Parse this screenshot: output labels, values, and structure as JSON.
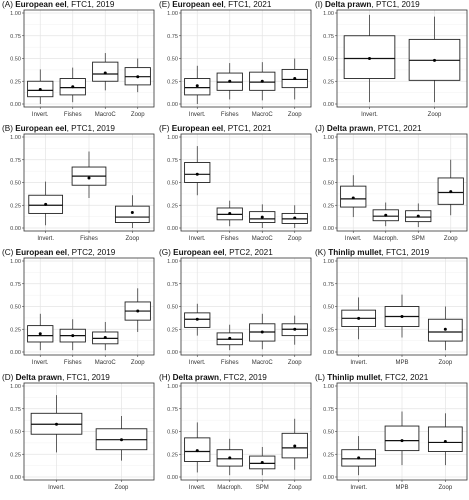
{
  "chart_data": [
    {
      "type": "box",
      "title": {
        "letter": "(A) ",
        "species": "European eel",
        "rest": ", FTC1, 2019"
      },
      "ylim": [
        0,
        1
      ],
      "yticks": [
        "0.00",
        "0.25",
        "0.50",
        "0.75",
        "1.00"
      ],
      "categories": [
        "Invert.",
        "Fishes",
        "MacroC",
        "Zoop"
      ],
      "boxes": [
        {
          "min": 0,
          "q1": 0.08,
          "median": 0.15,
          "q3": 0.25,
          "max": 0.38,
          "mean": 0.16
        },
        {
          "min": 0.02,
          "q1": 0.1,
          "median": 0.18,
          "q3": 0.28,
          "max": 0.4,
          "mean": 0.19
        },
        {
          "min": 0.15,
          "q1": 0.25,
          "median": 0.33,
          "q3": 0.46,
          "max": 0.56,
          "mean": 0.34
        },
        {
          "min": 0.13,
          "q1": 0.21,
          "median": 0.3,
          "q3": 0.4,
          "max": 0.5,
          "mean": 0.3
        }
      ]
    },
    {
      "type": "box",
      "title": {
        "letter": "(E) ",
        "species": "European eel",
        "rest": ", FTC1, 2021"
      },
      "ylim": [
        0,
        1
      ],
      "yticks": [
        "0.00",
        "0.25",
        "0.50",
        "0.75",
        "1.00"
      ],
      "categories": [
        "Invert.",
        "Fishes",
        "MacroC",
        "Zoop"
      ],
      "boxes": [
        {
          "min": 0,
          "q1": 0.1,
          "median": 0.18,
          "q3": 0.28,
          "max": 0.42,
          "mean": 0.2
        },
        {
          "min": 0.05,
          "q1": 0.15,
          "median": 0.24,
          "q3": 0.34,
          "max": 0.45,
          "mean": 0.25
        },
        {
          "min": 0.04,
          "q1": 0.15,
          "median": 0.24,
          "q3": 0.35,
          "max": 0.46,
          "mean": 0.25
        },
        {
          "min": 0.05,
          "q1": 0.18,
          "median": 0.27,
          "q3": 0.38,
          "max": 0.5,
          "mean": 0.28
        }
      ]
    },
    {
      "type": "box",
      "title": {
        "letter": "(I) ",
        "species": "Delta prawn",
        "rest": ", PTC1, 2019"
      },
      "ylim": [
        0,
        1
      ],
      "yticks": [
        "0.00",
        "0.25",
        "0.50",
        "0.75",
        "1.00"
      ],
      "categories": [
        "Invert.",
        "Zoop"
      ],
      "boxes": [
        {
          "min": 0.02,
          "q1": 0.28,
          "median": 0.5,
          "q3": 0.75,
          "max": 0.98,
          "mean": 0.5
        },
        {
          "min": 0.02,
          "q1": 0.26,
          "median": 0.48,
          "q3": 0.71,
          "max": 0.96,
          "mean": 0.48
        }
      ]
    },
    {
      "type": "box",
      "title": {
        "letter": "(B) ",
        "species": "European eel",
        "rest": ", PTC1, 2019"
      },
      "ylim": [
        0,
        1
      ],
      "yticks": [
        "0.00",
        "0.25",
        "0.50",
        "0.75",
        "1.00"
      ],
      "categories": [
        "Invert.",
        "Fishes",
        "Zoop"
      ],
      "boxes": [
        {
          "min": 0.03,
          "q1": 0.16,
          "median": 0.25,
          "q3": 0.36,
          "max": 0.51,
          "mean": 0.26
        },
        {
          "min": 0.33,
          "q1": 0.47,
          "median": 0.57,
          "q3": 0.67,
          "max": 0.84,
          "mean": 0.55
        },
        {
          "min": 0,
          "q1": 0.06,
          "median": 0.12,
          "q3": 0.24,
          "max": 0.36,
          "mean": 0.17
        }
      ]
    },
    {
      "type": "box",
      "title": {
        "letter": "(F) ",
        "species": "European eel",
        "rest": ", PTC1, 2021"
      },
      "ylim": [
        0,
        1
      ],
      "yticks": [
        "0.00",
        "0.25",
        "0.50",
        "0.75",
        "1.00"
      ],
      "categories": [
        "Invert.",
        "Fishes",
        "MacroC",
        "Zoop"
      ],
      "boxes": [
        {
          "min": 0.36,
          "q1": 0.5,
          "median": 0.59,
          "q3": 0.72,
          "max": 0.9,
          "mean": 0.59
        },
        {
          "min": 0.02,
          "q1": 0.09,
          "median": 0.15,
          "q3": 0.22,
          "max": 0.3,
          "mean": 0.16
        },
        {
          "min": 0,
          "q1": 0.06,
          "median": 0.1,
          "q3": 0.18,
          "max": 0.26,
          "mean": 0.12
        },
        {
          "min": 0,
          "q1": 0.05,
          "median": 0.1,
          "q3": 0.16,
          "max": 0.25,
          "mean": 0.11
        }
      ]
    },
    {
      "type": "box",
      "title": {
        "letter": "(J) ",
        "species": "Delta prawn",
        "rest": ", PTC1, 2021"
      },
      "ylim": [
        0,
        1
      ],
      "yticks": [
        "0.00",
        "0.25",
        "0.50",
        "0.75",
        "1.00"
      ],
      "categories": [
        "Invert.",
        "Macroph.",
        "SPM",
        "Zoop"
      ],
      "boxes": [
        {
          "min": 0.12,
          "q1": 0.23,
          "median": 0.32,
          "q3": 0.46,
          "max": 0.58,
          "mean": 0.33
        },
        {
          "min": 0.02,
          "q1": 0.08,
          "median": 0.13,
          "q3": 0.2,
          "max": 0.28,
          "mean": 0.14
        },
        {
          "min": 0.01,
          "q1": 0.07,
          "median": 0.12,
          "q3": 0.19,
          "max": 0.27,
          "mean": 0.13
        },
        {
          "min": 0.14,
          "q1": 0.26,
          "median": 0.39,
          "q3": 0.55,
          "max": 0.75,
          "mean": 0.4
        }
      ]
    },
    {
      "type": "box",
      "title": {
        "letter": "(C) ",
        "species": "European eel",
        "rest": ", PTC2, 2019"
      },
      "ylim": [
        0,
        1
      ],
      "yticks": [
        "0.00",
        "0.25",
        "0.50",
        "0.75",
        "1.00"
      ],
      "categories": [
        "Invert.",
        "Fishes",
        "MacroC",
        "Zoop"
      ],
      "boxes": [
        {
          "min": 0.02,
          "q1": 0.11,
          "median": 0.18,
          "q3": 0.29,
          "max": 0.42,
          "mean": 0.2
        },
        {
          "min": 0.02,
          "q1": 0.11,
          "median": 0.18,
          "q3": 0.25,
          "max": 0.36,
          "mean": 0.18
        },
        {
          "min": 0.02,
          "q1": 0.09,
          "median": 0.15,
          "q3": 0.22,
          "max": 0.33,
          "mean": 0.16
        },
        {
          "min": 0.22,
          "q1": 0.35,
          "median": 0.45,
          "q3": 0.55,
          "max": 0.7,
          "mean": 0.45
        }
      ]
    },
    {
      "type": "box",
      "title": {
        "letter": "(G) ",
        "species": "European eel",
        "rest": ", PTC2, 2021"
      },
      "ylim": [
        0,
        1
      ],
      "yticks": [
        "0.00",
        "0.25",
        "0.50",
        "0.75",
        "1.00"
      ],
      "categories": [
        "Invert.",
        "Fishes",
        "MacroC",
        "Zoop"
      ],
      "boxes": [
        {
          "min": 0.18,
          "q1": 0.27,
          "median": 0.36,
          "q3": 0.43,
          "max": 0.53,
          "mean": 0.36
        },
        {
          "min": 0.02,
          "q1": 0.08,
          "median": 0.14,
          "q3": 0.21,
          "max": 0.3,
          "mean": 0.15
        },
        {
          "min": 0.03,
          "q1": 0.12,
          "median": 0.22,
          "q3": 0.31,
          "max": 0.42,
          "mean": 0.22
        },
        {
          "min": 0.08,
          "q1": 0.18,
          "median": 0.25,
          "q3": 0.31,
          "max": 0.4,
          "mean": 0.25
        }
      ]
    },
    {
      "type": "box",
      "title": {
        "letter": "(K) ",
        "species": "Thinlip mullet",
        "rest": ", FTC1, 2019"
      },
      "ylim": [
        0,
        1
      ],
      "yticks": [
        "0.00",
        "0.25",
        "0.50",
        "0.75",
        "1.00"
      ],
      "categories": [
        "Invert.",
        "MPB",
        "Zoop"
      ],
      "boxes": [
        {
          "min": 0.14,
          "q1": 0.28,
          "median": 0.37,
          "q3": 0.46,
          "max": 0.6,
          "mean": 0.37
        },
        {
          "min": 0.16,
          "q1": 0.28,
          "median": 0.39,
          "q3": 0.5,
          "max": 0.63,
          "mean": 0.39
        },
        {
          "min": 0.02,
          "q1": 0.12,
          "median": 0.22,
          "q3": 0.36,
          "max": 0.5,
          "mean": 0.25
        }
      ]
    },
    {
      "type": "box",
      "title": {
        "letter": "(D) ",
        "species": "Delta prawn",
        "rest": ", FTC1, 2019"
      },
      "ylim": [
        0,
        1
      ],
      "yticks": [
        "0.00",
        "0.25",
        "0.50",
        "0.75",
        "1.00"
      ],
      "categories": [
        "Invert.",
        "Zoop"
      ],
      "boxes": [
        {
          "min": 0.27,
          "q1": 0.47,
          "median": 0.58,
          "q3": 0.7,
          "max": 0.9,
          "mean": 0.58
        },
        {
          "min": 0.18,
          "q1": 0.3,
          "median": 0.41,
          "q3": 0.53,
          "max": 0.67,
          "mean": 0.41
        }
      ]
    },
    {
      "type": "box",
      "title": {
        "letter": "(H) ",
        "species": "Delta prawn",
        "rest": ", FTC2, 2019"
      },
      "ylim": [
        0,
        1
      ],
      "yticks": [
        "0.00",
        "0.25",
        "0.50",
        "0.75",
        "1.00"
      ],
      "categories": [
        "Invert.",
        "Macroph.",
        "SPM",
        "Zoop"
      ],
      "boxes": [
        {
          "min": 0.05,
          "q1": 0.17,
          "median": 0.28,
          "q3": 0.43,
          "max": 0.6,
          "mean": 0.29
        },
        {
          "min": 0.02,
          "q1": 0.12,
          "median": 0.2,
          "q3": 0.3,
          "max": 0.42,
          "mean": 0.21
        },
        {
          "min": 0.02,
          "q1": 0.09,
          "median": 0.15,
          "q3": 0.23,
          "max": 0.33,
          "mean": 0.16
        },
        {
          "min": 0.08,
          "q1": 0.21,
          "median": 0.32,
          "q3": 0.48,
          "max": 0.64,
          "mean": 0.34
        }
      ]
    },
    {
      "type": "box",
      "title": {
        "letter": "(L) ",
        "species": "Thinlip mullet",
        "rest": ", FTC2, 2021"
      },
      "ylim": [
        0,
        1
      ],
      "yticks": [
        "0.00",
        "0.25",
        "0.50",
        "0.75",
        "1.00"
      ],
      "categories": [
        "Invert.",
        "MPB",
        "Zoop"
      ],
      "boxes": [
        {
          "min": 0.02,
          "q1": 0.12,
          "median": 0.2,
          "q3": 0.3,
          "max": 0.45,
          "mean": 0.21
        },
        {
          "min": 0.13,
          "q1": 0.29,
          "median": 0.4,
          "q3": 0.56,
          "max": 0.72,
          "mean": 0.4
        },
        {
          "min": 0.13,
          "q1": 0.28,
          "median": 0.38,
          "q3": 0.55,
          "max": 0.7,
          "mean": 0.39
        }
      ]
    }
  ]
}
